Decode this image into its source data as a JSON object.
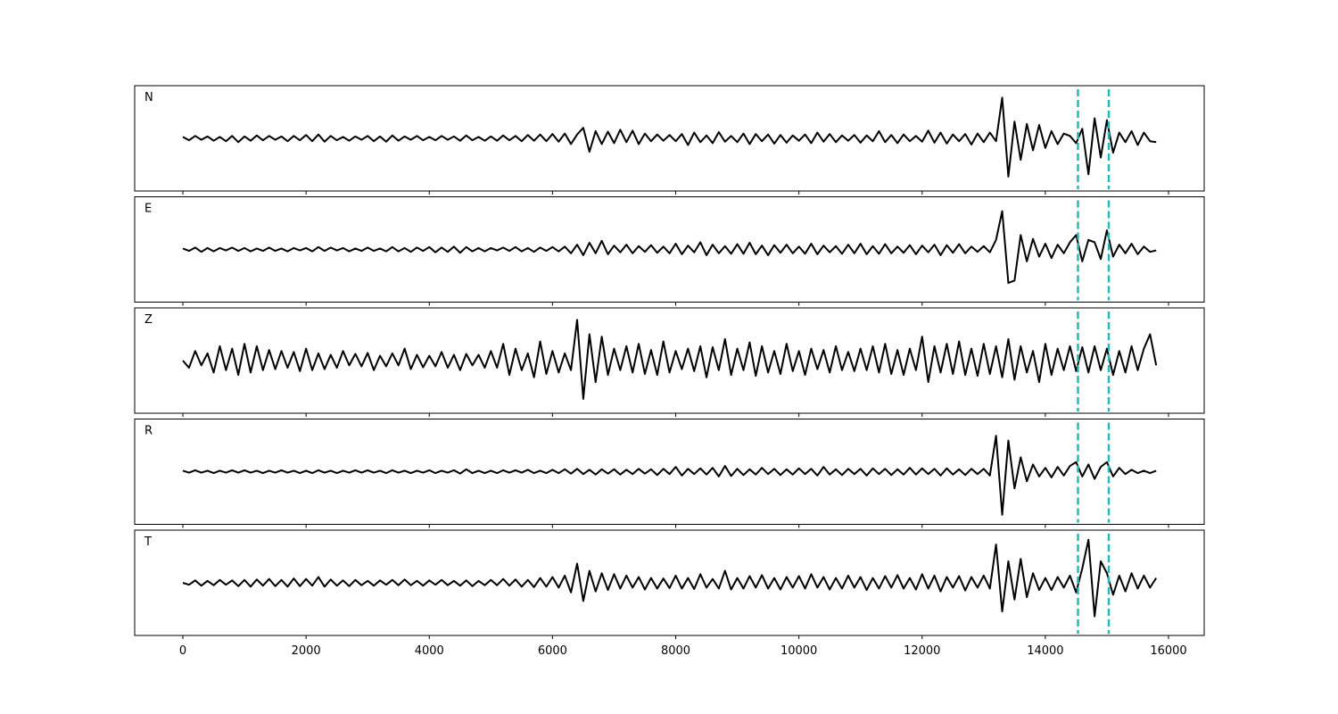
{
  "chart_data": {
    "type": "line",
    "x": [
      0,
      100,
      200,
      300,
      400,
      500,
      600,
      700,
      800,
      900,
      1000,
      1100,
      1200,
      1300,
      1400,
      1500,
      1600,
      1700,
      1800,
      1900,
      2000,
      2100,
      2200,
      2300,
      2400,
      2500,
      2600,
      2700,
      2800,
      2900,
      3000,
      3100,
      3200,
      3300,
      3400,
      3500,
      3600,
      3700,
      3800,
      3900,
      4000,
      4100,
      4200,
      4300,
      4400,
      4500,
      4600,
      4700,
      4800,
      4900,
      5000,
      5100,
      5200,
      5300,
      5400,
      5500,
      5600,
      5700,
      5800,
      5900,
      6000,
      6100,
      6200,
      6300,
      6400,
      6500,
      6600,
      6700,
      6800,
      6900,
      7000,
      7100,
      7200,
      7300,
      7400,
      7500,
      7600,
      7700,
      7800,
      7900,
      8000,
      8100,
      8200,
      8300,
      8400,
      8500,
      8600,
      8700,
      8800,
      8900,
      9000,
      9100,
      9200,
      9300,
      9400,
      9500,
      9600,
      9700,
      9800,
      9900,
      10000,
      10100,
      10200,
      10300,
      10400,
      10500,
      10600,
      10700,
      10800,
      10900,
      11000,
      11100,
      11200,
      11300,
      11400,
      11500,
      11600,
      11700,
      11800,
      11900,
      12000,
      12100,
      12200,
      12300,
      12400,
      12500,
      12600,
      12700,
      12800,
      12900,
      13000,
      13100,
      13200,
      13300,
      13400,
      13500,
      13600,
      13700,
      13800,
      13900,
      14000,
      14100,
      14200,
      14300,
      14400,
      14500,
      14600,
      14700,
      14800,
      14900,
      15000,
      15100,
      15200,
      15300,
      15400,
      15500,
      15600,
      15700,
      15800
    ],
    "xlim": [
      -782,
      16579
    ],
    "xticks": [
      0,
      2000,
      4000,
      6000,
      8000,
      10000,
      12000,
      14000,
      16000
    ],
    "ylim": [
      -1.1,
      1.1
    ],
    "series": [
      {
        "name": "N",
        "color": "#000000",
        "values": [
          0.03,
          -0.04,
          0.05,
          -0.03,
          0.04,
          -0.05,
          0.03,
          -0.06,
          0.05,
          -0.08,
          0.04,
          -0.05,
          0.06,
          -0.04,
          0.05,
          -0.03,
          0.04,
          -0.06,
          0.05,
          -0.04,
          0.07,
          -0.06,
          0.08,
          -0.07,
          0.05,
          -0.04,
          0.03,
          -0.05,
          0.04,
          -0.03,
          0.05,
          -0.06,
          0.04,
          -0.07,
          0.06,
          -0.05,
          0.04,
          -0.03,
          0.05,
          -0.04,
          0.03,
          -0.04,
          0.05,
          -0.03,
          0.04,
          -0.05,
          0.06,
          -0.04,
          0.03,
          -0.05,
          0.04,
          -0.05,
          0.06,
          -0.04,
          0.05,
          -0.06,
          0.07,
          -0.05,
          0.08,
          -0.06,
          0.09,
          -0.07,
          0.1,
          -0.12,
          0.08,
          0.22,
          -0.28,
          0.15,
          -0.12,
          0.14,
          -0.1,
          0.18,
          -0.08,
          0.16,
          -0.12,
          0.1,
          -0.06,
          0.08,
          -0.05,
          0.07,
          -0.06,
          0.09,
          -0.14,
          0.12,
          -0.08,
          0.06,
          -0.1,
          0.13,
          -0.07,
          0.05,
          -0.08,
          0.1,
          -0.12,
          0.09,
          -0.06,
          0.08,
          -0.11,
          0.07,
          -0.09,
          0.06,
          -0.05,
          0.08,
          -0.1,
          0.12,
          -0.07,
          0.09,
          -0.08,
          0.06,
          -0.05,
          0.07,
          -0.09,
          0.06,
          -0.06,
          0.15,
          -0.08,
          0.07,
          -0.1,
          0.08,
          -0.06,
          0.05,
          -0.07,
          0.16,
          -0.09,
          0.12,
          -0.11,
          0.08,
          -0.06,
          0.09,
          -0.13,
          0.1,
          -0.08,
          0.12,
          -0.06,
          0.85,
          -0.8,
          0.35,
          -0.45,
          0.3,
          -0.25,
          0.28,
          -0.2,
          0.15,
          -0.12,
          0.1,
          0.05,
          -0.1,
          0.2,
          -0.75,
          0.42,
          -0.4,
          0.38,
          -0.3,
          0.12,
          -0.08,
          0.15,
          -0.14,
          0.12,
          -0.06,
          -0.08
        ]
      },
      {
        "name": "E",
        "color": "#000000",
        "values": [
          0.02,
          -0.03,
          0.04,
          -0.05,
          0.03,
          -0.04,
          0.03,
          -0.02,
          0.04,
          -0.03,
          0.03,
          -0.04,
          0.02,
          -0.03,
          0.04,
          -0.03,
          0.02,
          -0.04,
          0.03,
          -0.02,
          0.03,
          -0.04,
          0.05,
          -0.03,
          0.04,
          -0.02,
          0.03,
          -0.04,
          0.02,
          -0.03,
          0.04,
          -0.03,
          0.02,
          -0.04,
          0.05,
          -0.04,
          0.03,
          -0.05,
          0.04,
          -0.03,
          0.05,
          -0.06,
          0.04,
          -0.05,
          0.06,
          -0.07,
          0.05,
          -0.04,
          0.03,
          -0.04,
          0.03,
          -0.02,
          0.04,
          -0.03,
          0.05,
          -0.04,
          0.03,
          -0.05,
          0.04,
          -0.03,
          0.05,
          -0.04,
          0.06,
          -0.08,
          0.1,
          -0.12,
          0.14,
          -0.08,
          0.18,
          -0.1,
          0.08,
          -0.06,
          0.1,
          -0.08,
          0.07,
          -0.05,
          0.09,
          -0.07,
          0.06,
          -0.08,
          0.12,
          -0.1,
          0.08,
          -0.06,
          0.15,
          -0.12,
          0.1,
          -0.08,
          0.07,
          -0.09,
          0.11,
          -0.09,
          0.14,
          -0.1,
          0.08,
          -0.12,
          0.09,
          -0.07,
          0.1,
          -0.08,
          0.06,
          -0.09,
          0.12,
          -0.1,
          0.08,
          -0.06,
          0.07,
          -0.09,
          0.1,
          -0.08,
          0.12,
          -0.1,
          0.07,
          -0.09,
          0.11,
          -0.08,
          0.06,
          -0.07,
          0.09,
          -0.1,
          0.08,
          -0.06,
          0.1,
          -0.12,
          0.09,
          -0.07,
          0.11,
          -0.08,
          0.06,
          -0.05,
          0.07,
          -0.06,
          0.2,
          0.8,
          -0.7,
          -0.65,
          0.3,
          -0.25,
          0.22,
          -0.15,
          0.12,
          -0.18,
          0.1,
          -0.08,
          0.15,
          0.3,
          -0.25,
          0.2,
          0.15,
          -0.2,
          0.4,
          -0.15,
          0.1,
          -0.08,
          0.12,
          -0.1,
          0.06,
          -0.05,
          -0.02
        ]
      },
      {
        "name": "Z",
        "color": "#000000",
        "values": [
          0.0,
          -0.15,
          0.2,
          -0.1,
          0.15,
          -0.25,
          0.3,
          -0.2,
          0.25,
          -0.3,
          0.35,
          -0.25,
          0.3,
          -0.2,
          0.22,
          -0.18,
          0.2,
          -0.15,
          0.18,
          -0.22,
          0.25,
          -0.2,
          0.15,
          -0.18,
          0.12,
          -0.15,
          0.2,
          -0.1,
          0.14,
          -0.12,
          0.16,
          -0.2,
          0.1,
          -0.12,
          0.15,
          -0.1,
          0.25,
          -0.18,
          0.12,
          -0.14,
          0.1,
          -0.12,
          0.18,
          -0.15,
          0.12,
          -0.2,
          0.14,
          -0.1,
          0.12,
          -0.15,
          0.2,
          -0.15,
          0.35,
          -0.3,
          0.25,
          -0.2,
          0.15,
          -0.35,
          0.4,
          -0.28,
          0.2,
          -0.25,
          0.15,
          -0.2,
          0.85,
          -0.8,
          0.55,
          -0.45,
          0.5,
          -0.3,
          0.25,
          -0.2,
          0.3,
          -0.25,
          0.35,
          -0.28,
          0.22,
          -0.3,
          0.4,
          -0.25,
          0.2,
          -0.18,
          0.25,
          -0.22,
          0.3,
          -0.35,
          0.28,
          -0.2,
          0.45,
          -0.3,
          0.25,
          -0.2,
          0.38,
          -0.32,
          0.3,
          -0.25,
          0.2,
          -0.28,
          0.35,
          -0.22,
          0.2,
          -0.3,
          0.25,
          -0.18,
          0.22,
          -0.25,
          0.3,
          -0.2,
          0.18,
          -0.22,
          0.25,
          -0.2,
          0.3,
          -0.25,
          0.35,
          -0.28,
          0.22,
          -0.3,
          0.25,
          -0.2,
          0.5,
          -0.45,
          0.3,
          -0.25,
          0.35,
          -0.28,
          0.4,
          -0.3,
          0.25,
          -0.32,
          0.35,
          -0.28,
          0.3,
          -0.35,
          0.45,
          -0.4,
          0.3,
          -0.25,
          0.2,
          -0.45,
          0.35,
          -0.3,
          0.25,
          -0.2,
          0.3,
          -0.22,
          0.28,
          -0.25,
          0.3,
          -0.2,
          0.25,
          -0.3,
          0.2,
          -0.25,
          0.3,
          -0.2,
          0.25,
          0.55,
          -0.1
        ]
      },
      {
        "name": "R",
        "color": "#000000",
        "values": [
          0.02,
          -0.02,
          0.03,
          -0.02,
          0.02,
          -0.03,
          0.02,
          -0.02,
          0.03,
          -0.02,
          0.03,
          -0.02,
          0.02,
          -0.03,
          0.02,
          -0.02,
          0.03,
          -0.02,
          0.02,
          -0.03,
          0.02,
          -0.03,
          0.03,
          -0.02,
          0.02,
          -0.03,
          0.02,
          -0.02,
          0.03,
          -0.02,
          0.03,
          -0.02,
          0.02,
          -0.03,
          0.03,
          -0.02,
          0.02,
          -0.03,
          0.02,
          -0.02,
          0.03,
          -0.03,
          0.02,
          -0.02,
          0.03,
          -0.04,
          0.05,
          -0.03,
          0.02,
          -0.03,
          0.02,
          -0.03,
          0.03,
          -0.02,
          0.03,
          -0.02,
          0.04,
          -0.03,
          0.02,
          -0.03,
          0.04,
          -0.03,
          0.05,
          -0.04,
          0.06,
          -0.05,
          0.04,
          -0.06,
          0.05,
          -0.04,
          0.05,
          -0.06,
          0.04,
          -0.05,
          0.06,
          -0.04,
          0.05,
          -0.07,
          0.06,
          -0.05,
          0.1,
          -0.08,
          0.06,
          -0.05,
          0.07,
          -0.06,
          0.08,
          -0.1,
          0.12,
          -0.09,
          0.06,
          -0.07,
          0.05,
          -0.06,
          0.08,
          -0.05,
          0.06,
          -0.07,
          0.05,
          -0.06,
          0.07,
          -0.05,
          0.06,
          -0.08,
          0.1,
          -0.06,
          0.05,
          -0.07,
          0.06,
          -0.05,
          0.06,
          -0.08,
          0.07,
          -0.05,
          0.06,
          -0.07,
          0.05,
          -0.06,
          0.08,
          -0.06,
          0.07,
          -0.05,
          0.06,
          -0.08,
          0.07,
          -0.06,
          0.05,
          -0.07,
          0.06,
          -0.05,
          0.06,
          -0.08,
          0.75,
          -0.9,
          0.65,
          -0.35,
          0.3,
          -0.2,
          0.15,
          -0.1,
          0.08,
          -0.12,
          0.1,
          -0.08,
          0.12,
          0.2,
          -0.1,
          0.15,
          -0.15,
          0.1,
          0.2,
          -0.1,
          0.08,
          -0.05,
          0.04,
          -0.03,
          0.02,
          -0.03,
          0.02
        ]
      },
      {
        "name": "T",
        "color": "#000000",
        "values": [
          0.0,
          -0.04,
          0.05,
          -0.06,
          0.04,
          -0.05,
          0.06,
          -0.04,
          0.05,
          -0.07,
          0.06,
          -0.08,
          0.07,
          -0.06,
          0.08,
          -0.07,
          0.06,
          -0.08,
          0.09,
          -0.07,
          0.08,
          -0.06,
          0.12,
          -0.08,
          0.07,
          -0.06,
          0.05,
          -0.07,
          0.06,
          -0.05,
          0.04,
          -0.06,
          0.05,
          -0.04,
          0.06,
          -0.05,
          0.07,
          -0.05,
          0.04,
          -0.06,
          0.05,
          -0.04,
          0.06,
          -0.05,
          0.04,
          -0.06,
          0.05,
          -0.07,
          0.04,
          -0.05,
          0.06,
          -0.05,
          0.08,
          -0.06,
          0.07,
          -0.08,
          0.06,
          -0.09,
          0.1,
          -0.08,
          0.12,
          -0.1,
          0.15,
          -0.2,
          0.4,
          -0.38,
          0.25,
          -0.18,
          0.2,
          -0.15,
          0.18,
          -0.12,
          0.15,
          -0.1,
          0.12,
          -0.14,
          0.1,
          -0.12,
          0.09,
          -0.11,
          0.15,
          -0.12,
          0.1,
          -0.13,
          0.18,
          -0.1,
          0.08,
          -0.12,
          0.25,
          -0.14,
          0.1,
          -0.12,
          0.14,
          -0.1,
          0.16,
          -0.12,
          0.1,
          -0.14,
          0.12,
          -0.1,
          0.14,
          -0.12,
          0.18,
          -0.1,
          0.12,
          -0.14,
          0.1,
          -0.12,
          0.15,
          -0.1,
          0.12,
          -0.15,
          0.1,
          -0.12,
          0.14,
          -0.1,
          0.16,
          -0.12,
          0.1,
          -0.14,
          0.18,
          -0.12,
          0.15,
          -0.18,
          0.12,
          -0.1,
          0.14,
          -0.16,
          0.12,
          -0.1,
          0.15,
          -0.12,
          0.8,
          -0.6,
          0.45,
          -0.35,
          0.5,
          -0.3,
          0.2,
          -0.15,
          0.1,
          -0.15,
          0.12,
          -0.1,
          0.15,
          -0.2,
          0.3,
          0.9,
          -0.7,
          0.45,
          0.2,
          -0.25,
          0.15,
          -0.18,
          0.2,
          -0.12,
          0.15,
          -0.1,
          0.1
        ]
      }
    ],
    "vlines": {
      "color": "#17bfbf",
      "values": [
        14530,
        15030
      ]
    }
  }
}
